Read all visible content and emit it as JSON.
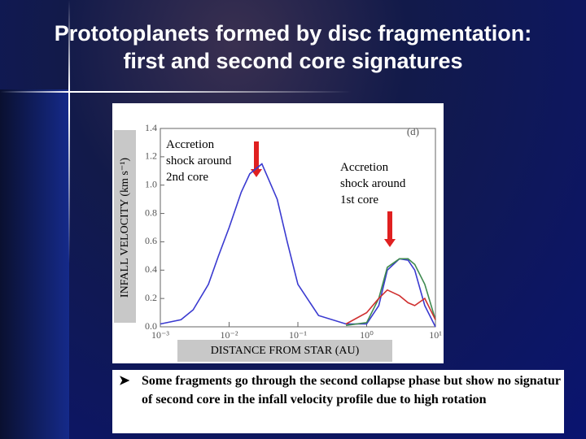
{
  "slide": {
    "title": [
      "Prototoplanets formed by disc fragmentation:",
      "first and second core signatures"
    ],
    "bullet": "Some fragments go through the second collapse phase but show no signatur of second core in the infall velocity profile due to high rotation"
  },
  "chart_data": {
    "type": "line",
    "panel_label": "(d)",
    "x_label": "DISTANCE FROM STAR (AU)",
    "y_label": "INFALL VELOCITY (km s⁻¹)",
    "annotations": [
      "Accretion\nshock around\n2nd core",
      "Accretion\nshock around\n1st core"
    ],
    "x": [
      0.001,
      0.002,
      0.003,
      0.005,
      0.007,
      0.01,
      0.015,
      0.02,
      0.03,
      0.05,
      0.07,
      0.1,
      0.2,
      0.5,
      1,
      1.5,
      2,
      3,
      4,
      5,
      7,
      10
    ],
    "series": [
      {
        "color": "#3a3ad0",
        "values": [
          0.02,
          0.05,
          0.12,
          0.3,
          0.5,
          0.7,
          0.95,
          1.08,
          1.15,
          0.9,
          0.6,
          0.3,
          0.08,
          0.02,
          0.02,
          0.15,
          0.4,
          0.48,
          0.47,
          0.4,
          0.15,
          0.0
        ]
      },
      {
        "color": "#3f8a50",
        "values": [
          null,
          null,
          null,
          null,
          null,
          null,
          null,
          null,
          null,
          null,
          null,
          null,
          null,
          0.01,
          0.03,
          0.2,
          0.42,
          0.48,
          0.48,
          0.44,
          0.3,
          0.05
        ]
      },
      {
        "color": "#d03030",
        "values": [
          null,
          null,
          null,
          null,
          null,
          null,
          null,
          null,
          null,
          null,
          null,
          null,
          null,
          0.02,
          0.1,
          0.2,
          0.26,
          0.22,
          0.17,
          0.15,
          0.2,
          0.05
        ]
      }
    ],
    "xscale": "log",
    "xlim": [
      0.001,
      10
    ],
    "xticks": [
      {
        "value": 0.001,
        "label": "10⁻³"
      },
      {
        "value": 0.01,
        "label": "10⁻²"
      },
      {
        "value": 0.1,
        "label": "10⁻¹"
      },
      {
        "value": 1,
        "label": "10⁰"
      },
      {
        "value": 10,
        "label": "10¹"
      }
    ],
    "ylim": [
      0,
      1.4
    ],
    "yticks": [
      {
        "value": 0,
        "label": "0.0"
      },
      {
        "value": 0.2,
        "label": "0.2"
      },
      {
        "value": 0.4,
        "label": "0.4"
      },
      {
        "value": 0.6,
        "label": "0.6"
      },
      {
        "value": 0.8,
        "label": "0.8"
      },
      {
        "value": 1,
        "label": "1.0"
      },
      {
        "value": 1.2,
        "label": "1.2"
      },
      {
        "value": 1.4,
        "label": "1.4"
      }
    ]
  }
}
